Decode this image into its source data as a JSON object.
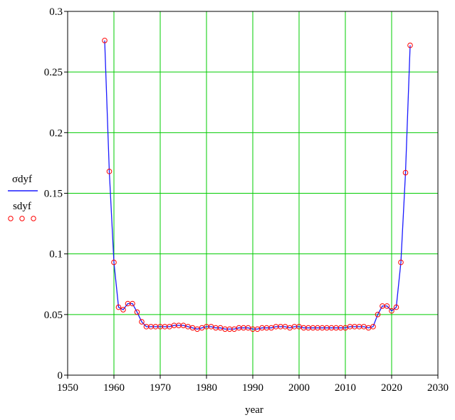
{
  "chart_data": {
    "type": "line",
    "xlabel": "year",
    "xlim": [
      1950,
      2030
    ],
    "ylim": [
      0,
      0.3
    ],
    "x_ticks": [
      "1950",
      "1960",
      "1970",
      "1980",
      "1990",
      "2000",
      "2010",
      "2020",
      "2030"
    ],
    "y_ticks": [
      "0",
      "0.05",
      "0.1",
      "0.15",
      "0.2",
      "0.25",
      "0.3"
    ],
    "grid": true,
    "legend_placement": "left",
    "colors": {
      "line": "#1a1aff",
      "markers": "#ff0000",
      "grid": "#00cc00",
      "frame": "#000000"
    },
    "x": [
      1958,
      1959,
      1960,
      1961,
      1962,
      1963,
      1964,
      1965,
      1966,
      1967,
      1968,
      1969,
      1970,
      1971,
      1972,
      1973,
      1974,
      1975,
      1976,
      1977,
      1978,
      1979,
      1980,
      1981,
      1982,
      1983,
      1984,
      1985,
      1986,
      1987,
      1988,
      1989,
      1990,
      1991,
      1992,
      1993,
      1994,
      1995,
      1996,
      1997,
      1998,
      1999,
      2000,
      2001,
      2002,
      2003,
      2004,
      2005,
      2006,
      2007,
      2008,
      2009,
      2010,
      2011,
      2012,
      2013,
      2014,
      2015,
      2016,
      2017,
      2018,
      2019,
      2020,
      2021,
      2022,
      2023,
      2024
    ],
    "series": [
      {
        "name": "σdyf",
        "style": "line",
        "values": [
          0.276,
          0.168,
          0.093,
          0.056,
          0.054,
          0.059,
          0.059,
          0.052,
          0.044,
          0.04,
          0.04,
          0.04,
          0.04,
          0.04,
          0.04,
          0.041,
          0.041,
          0.041,
          0.04,
          0.039,
          0.038,
          0.039,
          0.04,
          0.04,
          0.039,
          0.039,
          0.038,
          0.038,
          0.038,
          0.039,
          0.039,
          0.039,
          0.038,
          0.038,
          0.039,
          0.039,
          0.039,
          0.04,
          0.04,
          0.04,
          0.039,
          0.04,
          0.04,
          0.039,
          0.039,
          0.039,
          0.039,
          0.039,
          0.039,
          0.039,
          0.039,
          0.039,
          0.039,
          0.04,
          0.04,
          0.04,
          0.04,
          0.039,
          0.04,
          0.05,
          0.057,
          0.057,
          0.053,
          0.056,
          0.093,
          0.167,
          0.272
        ]
      },
      {
        "name": "sdyf",
        "style": "markers",
        "values": [
          0.276,
          0.168,
          0.093,
          0.056,
          0.054,
          0.059,
          0.059,
          0.052,
          0.044,
          0.04,
          0.04,
          0.04,
          0.04,
          0.04,
          0.04,
          0.041,
          0.041,
          0.041,
          0.04,
          0.039,
          0.038,
          0.039,
          0.04,
          0.04,
          0.039,
          0.039,
          0.038,
          0.038,
          0.038,
          0.039,
          0.039,
          0.039,
          0.038,
          0.038,
          0.039,
          0.039,
          0.039,
          0.04,
          0.04,
          0.04,
          0.039,
          0.04,
          0.04,
          0.039,
          0.039,
          0.039,
          0.039,
          0.039,
          0.039,
          0.039,
          0.039,
          0.039,
          0.039,
          0.04,
          0.04,
          0.04,
          0.04,
          0.039,
          0.04,
          0.05,
          0.057,
          0.057,
          0.053,
          0.056,
          0.093,
          0.167,
          0.272
        ]
      }
    ]
  }
}
